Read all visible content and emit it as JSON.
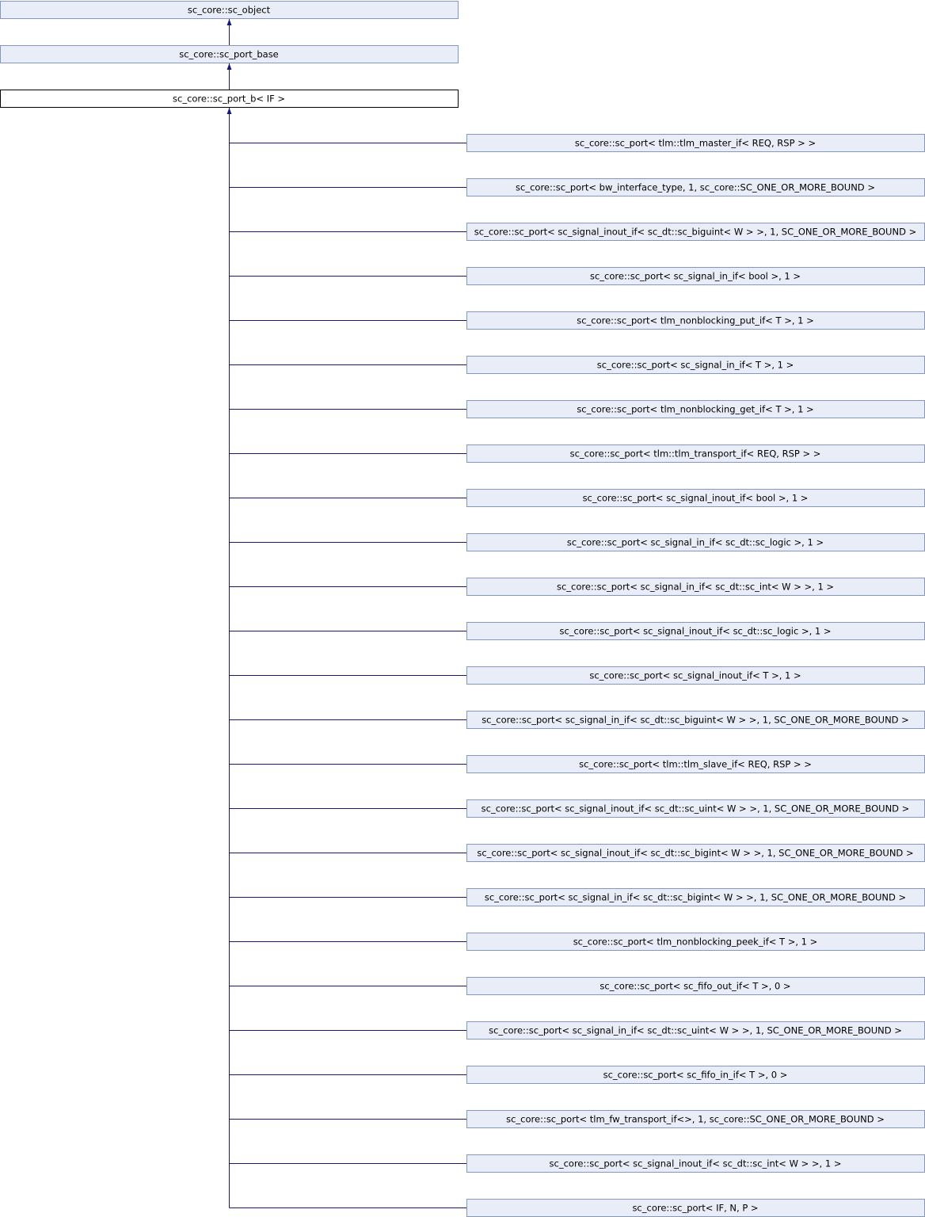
{
  "ancestors": [
    {
      "label": "sc_core::sc_object"
    },
    {
      "label": "sc_core::sc_port_base"
    },
    {
      "label": "sc_core::sc_port_b< IF >"
    }
  ],
  "children": [
    {
      "label": "sc_core::sc_port< tlm::tlm_master_if< REQ, RSP > >"
    },
    {
      "label": "sc_core::sc_port< bw_interface_type, 1, sc_core::SC_ONE_OR_MORE_BOUND >"
    },
    {
      "label": "sc_core::sc_port< sc_signal_inout_if< sc_dt::sc_biguint< W > >, 1, SC_ONE_OR_MORE_BOUND >"
    },
    {
      "label": "sc_core::sc_port< sc_signal_in_if< bool >, 1 >"
    },
    {
      "label": "sc_core::sc_port< tlm_nonblocking_put_if< T >, 1 >"
    },
    {
      "label": "sc_core::sc_port< sc_signal_in_if< T >, 1 >"
    },
    {
      "label": "sc_core::sc_port< tlm_nonblocking_get_if< T >, 1 >"
    },
    {
      "label": "sc_core::sc_port< tlm::tlm_transport_if< REQ, RSP > >"
    },
    {
      "label": "sc_core::sc_port< sc_signal_inout_if< bool >, 1 >"
    },
    {
      "label": "sc_core::sc_port< sc_signal_in_if< sc_dt::sc_logic >, 1 >"
    },
    {
      "label": "sc_core::sc_port< sc_signal_in_if< sc_dt::sc_int< W > >, 1 >"
    },
    {
      "label": "sc_core::sc_port< sc_signal_inout_if< sc_dt::sc_logic >, 1 >"
    },
    {
      "label": "sc_core::sc_port< sc_signal_inout_if< T >, 1 >"
    },
    {
      "label": "sc_core::sc_port< sc_signal_in_if< sc_dt::sc_biguint< W > >, 1, SC_ONE_OR_MORE_BOUND >"
    },
    {
      "label": "sc_core::sc_port< tlm::tlm_slave_if< REQ, RSP > >"
    },
    {
      "label": "sc_core::sc_port< sc_signal_inout_if< sc_dt::sc_uint< W > >, 1, SC_ONE_OR_MORE_BOUND >"
    },
    {
      "label": "sc_core::sc_port< sc_signal_inout_if< sc_dt::sc_bigint< W > >, 1, SC_ONE_OR_MORE_BOUND >"
    },
    {
      "label": "sc_core::sc_port< sc_signal_in_if< sc_dt::sc_bigint< W > >, 1, SC_ONE_OR_MORE_BOUND >"
    },
    {
      "label": "sc_core::sc_port< tlm_nonblocking_peek_if< T >, 1 >"
    },
    {
      "label": "sc_core::sc_port< sc_fifo_out_if< T >, 0 >"
    },
    {
      "label": "sc_core::sc_port< sc_signal_in_if< sc_dt::sc_uint< W > >, 1, SC_ONE_OR_MORE_BOUND >"
    },
    {
      "label": "sc_core::sc_port< sc_fifo_in_if< T >, 0 >"
    },
    {
      "label": "sc_core::sc_port< tlm_fw_transport_if<>, 1, sc_core::SC_ONE_OR_MORE_BOUND >"
    },
    {
      "label": "sc_core::sc_port< sc_signal_inout_if< sc_dt::sc_int< W > >, 1 >"
    },
    {
      "label": "sc_core::sc_port< IF, N, P >"
    }
  ]
}
